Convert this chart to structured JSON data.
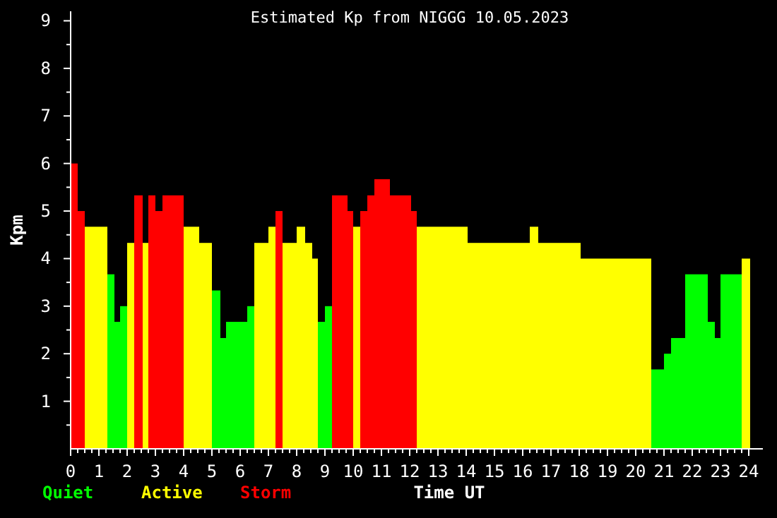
{
  "chart_data": {
    "type": "histogram",
    "title": "Estimated Kp from NIGGG 10.05.2023",
    "xlabel": "Time UT",
    "ylabel": "Kpm",
    "bins": [
      0,
      0.25,
      0.5,
      1.3,
      1.55,
      1.75,
      2,
      2.25,
      2.55,
      2.75,
      3,
      3.25,
      4,
      4.55,
      5,
      5.3,
      5.5,
      6.25,
      6.5,
      7,
      7.25,
      7.5,
      8,
      8.3,
      8.55,
      8.75,
      9,
      9.25,
      9.8,
      10,
      10.25,
      10.5,
      10.75,
      11.3,
      12.05,
      12.25,
      14.05,
      16.25,
      16.55,
      18.05,
      20.55,
      21,
      21.25,
      21.75,
      22.55,
      22.8,
      23,
      23.75,
      24.05
    ],
    "series": [
      {
        "name": "Quiet",
        "color": "#00ff00",
        "values": [
          null,
          null,
          null,
          3.67,
          2.67,
          3,
          null,
          null,
          null,
          null,
          null,
          null,
          null,
          null,
          3.33,
          2.33,
          2.67,
          3,
          null,
          null,
          null,
          null,
          null,
          null,
          null,
          2.67,
          3,
          null,
          null,
          null,
          null,
          null,
          null,
          null,
          null,
          null,
          null,
          null,
          null,
          null,
          1.67,
          2,
          2.33,
          3.67,
          2.67,
          2.33,
          3.67,
          null
        ]
      },
      {
        "name": "Active",
        "color": "#ffff00",
        "values": [
          null,
          null,
          4.67,
          null,
          null,
          null,
          4.33,
          null,
          4.33,
          null,
          null,
          null,
          4.67,
          4.33,
          null,
          null,
          null,
          null,
          4.33,
          4.67,
          null,
          4.33,
          4.67,
          4.33,
          4,
          null,
          null,
          null,
          null,
          4.67,
          null,
          null,
          null,
          null,
          null,
          4.67,
          4.33,
          4.67,
          4.33,
          4,
          null,
          null,
          null,
          null,
          null,
          null,
          null,
          4
        ]
      },
      {
        "name": "Storm",
        "color": "#ff0000",
        "values": [
          6,
          5,
          null,
          null,
          null,
          null,
          null,
          5.33,
          null,
          5.33,
          5,
          5.33,
          null,
          null,
          null,
          null,
          null,
          null,
          null,
          null,
          5,
          null,
          null,
          null,
          null,
          null,
          null,
          5.33,
          5,
          null,
          5,
          5.33,
          5.67,
          5.33,
          5,
          null,
          null,
          null,
          null,
          null,
          null,
          null,
          null,
          null,
          null,
          null,
          null,
          null
        ]
      }
    ],
    "xlim": [
      0,
      24.5
    ],
    "ylim": [
      0,
      9.2
    ],
    "xticks": [
      0,
      {
        "value": 0.25,
        "label": null
      },
      {
        "value": 0.5,
        "label": null
      },
      {
        "value": 0.75,
        "label": null
      },
      1,
      {
        "value": 1.25,
        "label": null
      },
      {
        "value": 1.5,
        "label": null
      },
      {
        "value": 1.75,
        "label": null
      },
      2,
      {
        "value": 2.25,
        "label": null
      },
      {
        "value": 2.5,
        "label": null
      },
      {
        "value": 2.75,
        "label": null
      },
      3,
      {
        "value": 3.25,
        "label": null
      },
      {
        "value": 3.5,
        "label": null
      },
      {
        "value": 3.75,
        "label": null
      },
      4,
      {
        "value": 4.25,
        "label": null
      },
      {
        "value": 4.5,
        "label": null
      },
      {
        "value": 4.75,
        "label": null
      },
      5,
      {
        "value": 5.25,
        "label": null
      },
      {
        "value": 5.5,
        "label": null
      },
      {
        "value": 5.75,
        "label": null
      },
      6,
      {
        "value": 6.25,
        "label": null
      },
      {
        "value": 6.5,
        "label": null
      },
      {
        "value": 6.75,
        "label": null
      },
      7,
      {
        "value": 7.25,
        "label": null
      },
      {
        "value": 7.5,
        "label": null
      },
      {
        "value": 7.75,
        "label": null
      },
      8,
      {
        "value": 8.25,
        "label": null
      },
      {
        "value": 8.5,
        "label": null
      },
      {
        "value": 8.75,
        "label": null
      },
      9,
      {
        "value": 9.25,
        "label": null
      },
      {
        "value": 9.5,
        "label": null
      },
      {
        "value": 9.75,
        "label": null
      },
      10,
      {
        "value": 10.25,
        "label": null
      },
      {
        "value": 10.5,
        "label": null
      },
      {
        "value": 10.75,
        "label": null
      },
      11,
      {
        "value": 11.25,
        "label": null
      },
      {
        "value": 11.5,
        "label": null
      },
      {
        "value": 11.75,
        "label": null
      },
      12,
      {
        "value": 12.25,
        "label": null
      },
      {
        "value": 12.5,
        "label": null
      },
      {
        "value": 12.75,
        "label": null
      },
      13,
      {
        "value": 13.25,
        "label": null
      },
      {
        "value": 13.5,
        "label": null
      },
      {
        "value": 13.75,
        "label": null
      },
      14,
      {
        "value": 14.25,
        "label": null
      },
      {
        "value": 14.5,
        "label": null
      },
      {
        "value": 14.75,
        "label": null
      },
      15,
      {
        "value": 15.25,
        "label": null
      },
      {
        "value": 15.5,
        "label": null
      },
      {
        "value": 15.75,
        "label": null
      },
      16,
      {
        "value": 16.25,
        "label": null
      },
      {
        "value": 16.5,
        "label": null
      },
      {
        "value": 16.75,
        "label": null
      },
      17,
      {
        "value": 17.25,
        "label": null
      },
      {
        "value": 17.5,
        "label": null
      },
      {
        "value": 17.75,
        "label": null
      },
      18,
      {
        "value": 18.25,
        "label": null
      },
      {
        "value": 18.5,
        "label": null
      },
      {
        "value": 18.75,
        "label": null
      },
      19,
      {
        "value": 19.25,
        "label": null
      },
      {
        "value": 19.5,
        "label": null
      },
      {
        "value": 19.75,
        "label": null
      },
      20,
      {
        "value": 20.25,
        "label": null
      },
      {
        "value": 20.5,
        "label": null
      },
      {
        "value": 20.75,
        "label": null
      },
      21,
      {
        "value": 21.25,
        "label": null
      },
      {
        "value": 21.5,
        "label": null
      },
      {
        "value": 21.75,
        "label": null
      },
      22,
      {
        "value": 22.25,
        "label": null
      },
      {
        "value": 22.5,
        "label": null
      },
      {
        "value": 22.75,
        "label": null
      },
      23,
      {
        "value": 23.25,
        "label": null
      },
      {
        "value": 23.5,
        "label": null
      },
      {
        "value": 23.75,
        "label": null
      },
      24
    ],
    "yticks": [
      {
        "value": 0.5,
        "label": null
      },
      1,
      {
        "value": 1.5,
        "label": null
      },
      2,
      {
        "value": 2.5,
        "label": null
      },
      3,
      {
        "value": 3.5,
        "label": null
      },
      4,
      {
        "value": 4.5,
        "label": null
      },
      5,
      {
        "value": 5.5,
        "label": null
      },
      6,
      {
        "value": 6.5,
        "label": null
      },
      7,
      {
        "value": 7.5,
        "label": null
      },
      8,
      {
        "value": 8.5,
        "label": null
      },
      9
    ],
    "legend": "bottom left",
    "grid": false
  }
}
